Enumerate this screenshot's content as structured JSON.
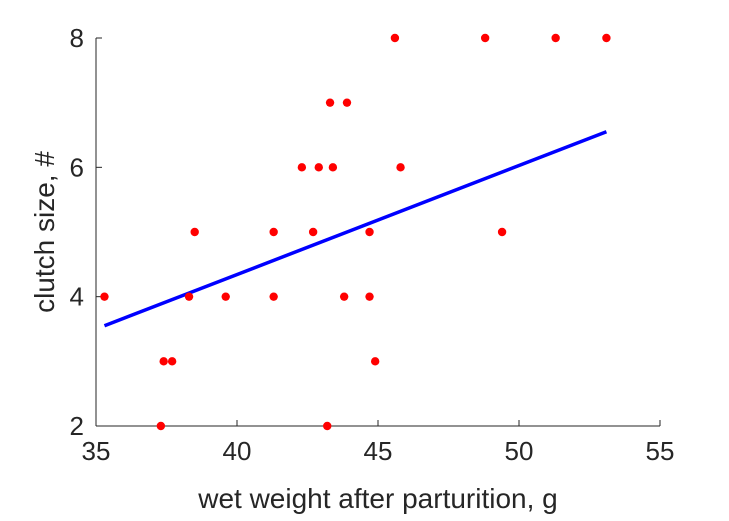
{
  "chart_data": {
    "type": "scatter",
    "title": "",
    "xlabel": "wet weight after parturition, g",
    "ylabel": "clutch size, #",
    "xlim": [
      35,
      55
    ],
    "ylim": [
      2,
      8
    ],
    "x_ticks": [
      35,
      40,
      45,
      50,
      55
    ],
    "y_ticks": [
      2,
      4,
      6,
      8
    ],
    "grid": false,
    "legend": "none",
    "colors": {
      "points": "#ff0000",
      "fit_line": "#0000ff",
      "axis": "#262626"
    },
    "series": [
      {
        "type": "scatter",
        "points": [
          {
            "x": 35.3,
            "y": 4
          },
          {
            "x": 37.3,
            "y": 2
          },
          {
            "x": 37.4,
            "y": 3
          },
          {
            "x": 37.7,
            "y": 3
          },
          {
            "x": 38.3,
            "y": 4
          },
          {
            "x": 38.5,
            "y": 5
          },
          {
            "x": 39.6,
            "y": 4
          },
          {
            "x": 41.3,
            "y": 5
          },
          {
            "x": 41.3,
            "y": 4
          },
          {
            "x": 42.3,
            "y": 6
          },
          {
            "x": 42.7,
            "y": 5
          },
          {
            "x": 42.9,
            "y": 6
          },
          {
            "x": 43.2,
            "y": 2
          },
          {
            "x": 43.3,
            "y": 7
          },
          {
            "x": 43.4,
            "y": 6
          },
          {
            "x": 43.8,
            "y": 4
          },
          {
            "x": 43.9,
            "y": 7
          },
          {
            "x": 44.7,
            "y": 5
          },
          {
            "x": 44.7,
            "y": 4
          },
          {
            "x": 44.9,
            "y": 3
          },
          {
            "x": 45.6,
            "y": 8
          },
          {
            "x": 45.8,
            "y": 6
          },
          {
            "x": 48.8,
            "y": 8
          },
          {
            "x": 49.4,
            "y": 5
          },
          {
            "x": 51.3,
            "y": 8
          },
          {
            "x": 53.1,
            "y": 8
          }
        ]
      },
      {
        "type": "line",
        "points": [
          {
            "x": 35.3,
            "y": 3.55
          },
          {
            "x": 53.1,
            "y": 6.55
          }
        ]
      }
    ]
  }
}
